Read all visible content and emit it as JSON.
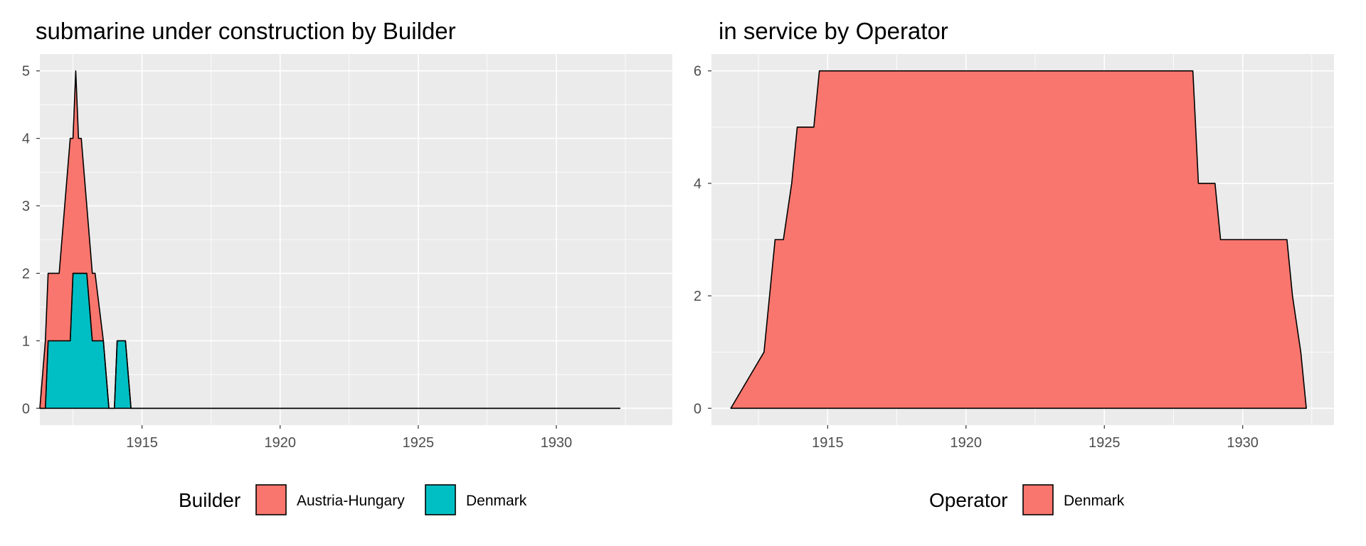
{
  "chart_data": [
    {
      "type": "area",
      "stacked": true,
      "step": true,
      "title": "submarine under construction by Builder",
      "xlabel": "",
      "ylabel": "",
      "xlim": [
        1911.5,
        1932.3
      ],
      "ylim": [
        0,
        5
      ],
      "x_ticks": [
        1915,
        1920,
        1925,
        1930
      ],
      "y_ticks": [
        0,
        1,
        2,
        3,
        4,
        5
      ],
      "grid": true,
      "legend": {
        "title": "Builder",
        "position": "bottom"
      },
      "x": [
        1911.3,
        1911.5,
        1911.6,
        1912.0,
        1912.2,
        1912.4,
        1912.5,
        1912.6,
        1912.7,
        1912.8,
        1913.0,
        1913.2,
        1913.3,
        1913.6,
        1913.8,
        1914.0,
        1914.1,
        1914.4,
        1914.6,
        1932.3
      ],
      "series": [
        {
          "name": "Denmark",
          "color": "#00BFC4",
          "values": [
            0,
            0,
            1,
            1,
            1,
            1,
            2,
            2,
            2,
            2,
            2,
            1,
            1,
            1,
            0,
            0,
            1,
            1,
            0,
            0
          ]
        },
        {
          "name": "Austria-Hungary",
          "color": "#F8766D",
          "values": [
            0,
            1,
            1,
            1,
            2,
            3,
            2,
            3,
            2,
            2,
            1,
            1,
            1,
            0,
            0,
            0,
            0,
            0,
            0,
            0
          ]
        }
      ]
    },
    {
      "type": "area",
      "stacked": true,
      "step": true,
      "title": "in service by Operator",
      "xlabel": "",
      "ylabel": "",
      "xlim": [
        1911.5,
        1932.3
      ],
      "ylim": [
        0,
        6
      ],
      "x_ticks": [
        1915,
        1920,
        1925,
        1930
      ],
      "y_ticks": [
        0,
        2,
        4,
        6
      ],
      "grid": true,
      "legend": {
        "title": "Operator",
        "position": "bottom"
      },
      "x": [
        1911.5,
        1912.7,
        1912.9,
        1913.1,
        1913.4,
        1913.7,
        1913.9,
        1914.5,
        1914.7,
        1928.2,
        1928.4,
        1929.0,
        1929.2,
        1931.6,
        1931.8,
        1932.1,
        1932.3
      ],
      "series": [
        {
          "name": "Denmark",
          "color": "#F8766D",
          "values": [
            0,
            1,
            2,
            3,
            3,
            4,
            5,
            5,
            6,
            6,
            4,
            4,
            3,
            3,
            2,
            1,
            0
          ]
        }
      ]
    }
  ]
}
